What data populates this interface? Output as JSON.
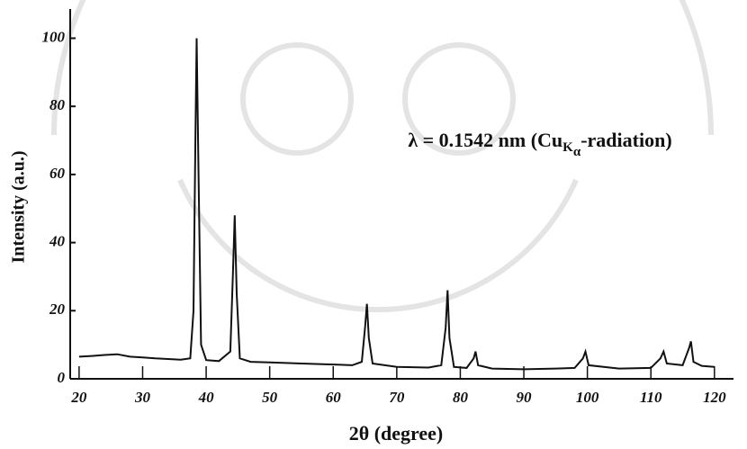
{
  "chart_data": {
    "type": "line",
    "annotation": [
      "λ = 0.1542 nm  (Cu",
      "K",
      "α",
      "-radiation)"
    ],
    "xlabel": "2θ (degree)",
    "ylabel": "Intensity (a.u.)",
    "x": [
      20,
      22,
      24,
      26,
      28,
      30,
      32,
      34,
      36,
      37.5,
      38,
      38.3,
      38.5,
      38.8,
      39.2,
      40,
      42,
      43.8,
      44.2,
      44.5,
      44.8,
      45.3,
      47,
      50,
      55,
      60,
      63,
      64.5,
      65,
      65.3,
      65.6,
      66.2,
      70,
      75,
      77,
      77.7,
      78,
      78.3,
      79,
      81,
      82.1,
      82.4,
      82.8,
      85,
      90,
      95,
      98,
      99.3,
      99.7,
      100.2,
      105,
      110,
      111.5,
      112,
      112.5,
      115,
      116,
      116.3,
      116.7,
      118,
      120
    ],
    "values": [
      6.5,
      6.7,
      7,
      7.2,
      6.5,
      6.3,
      6,
      5.8,
      5.6,
      6,
      20,
      70,
      100,
      60,
      10,
      5.5,
      5.2,
      8,
      30,
      48,
      25,
      6,
      5,
      4.8,
      4.5,
      4.2,
      4,
      5,
      15,
      22,
      12,
      4.5,
      3.5,
      3.3,
      4,
      15,
      26,
      12,
      3.5,
      3.2,
      6,
      8,
      4,
      3,
      2.8,
      3,
      3.2,
      6,
      8,
      4,
      3,
      3.2,
      6,
      8,
      4.5,
      4,
      9,
      11,
      5,
      3.8,
      3.5
    ],
    "color": "#111111",
    "xlim": [
      18.6,
      123
    ],
    "xticks": [
      20,
      30,
      40,
      50,
      60,
      70,
      80,
      90,
      100,
      110,
      120
    ],
    "ylim": [
      0,
      107
    ],
    "yticks": [
      0,
      20,
      40,
      60,
      80,
      100
    ]
  }
}
